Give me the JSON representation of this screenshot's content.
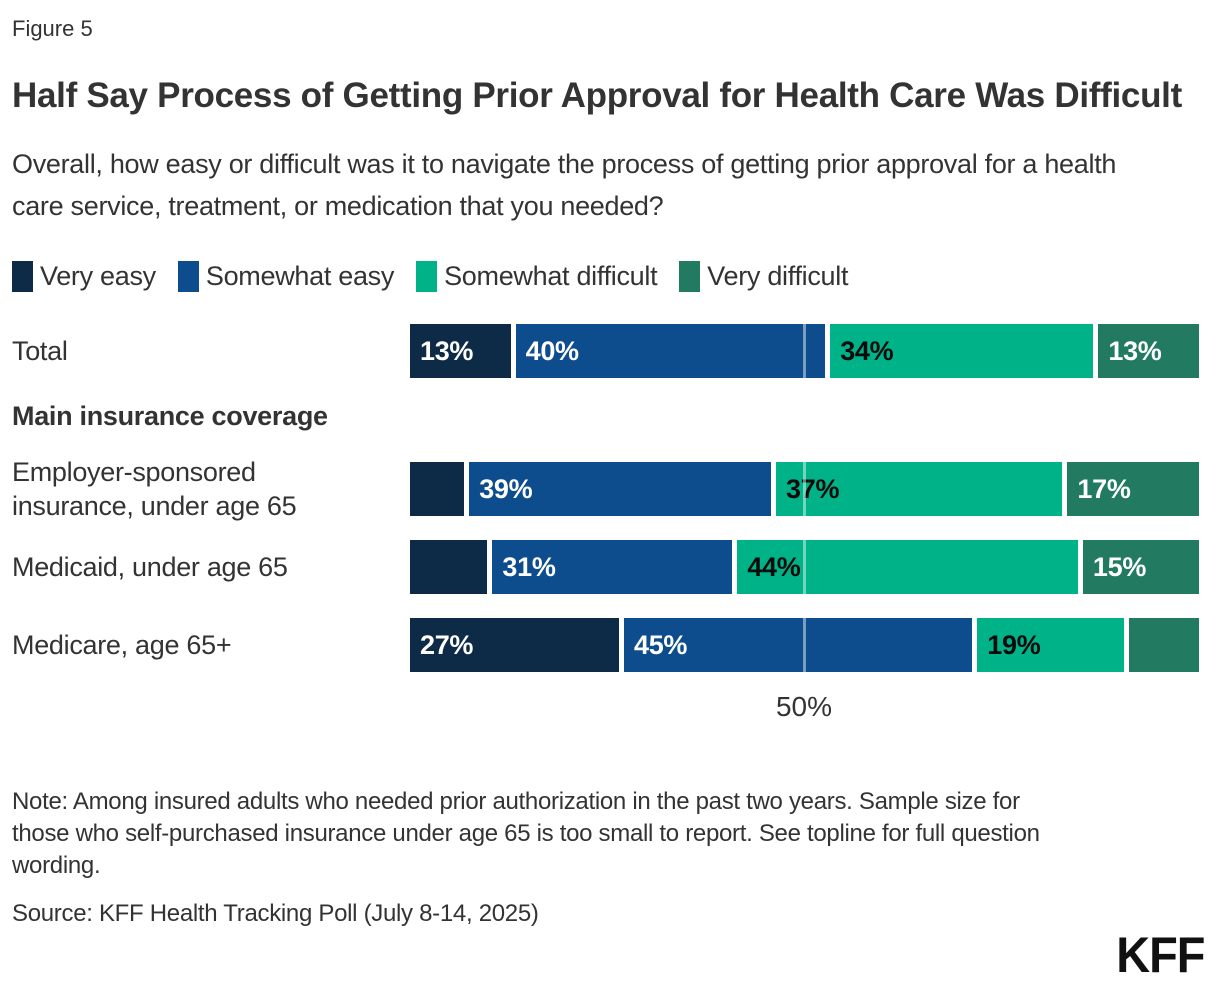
{
  "figure_label": "Figure 5",
  "title": "Half Say Process of Getting Prior Approval for Health Care Was Difficult",
  "subtitle": "Overall, how easy or difficult was it to navigate the process of getting prior approval for a health care service, treatment, or medication that you needed?",
  "chart_data": {
    "type": "bar",
    "stacked": true,
    "orientation": "horizontal",
    "unit": "percent",
    "xlim": [
      0,
      100
    ],
    "grid_on": true,
    "grid_tick": {
      "value": 50,
      "label": "50%"
    },
    "legend_position": "top",
    "legend": [
      {
        "label": "Very easy",
        "color": "#0d2a47"
      },
      {
        "label": "Somewhat easy",
        "color": "#0e4d8d"
      },
      {
        "label": "Somewhat difficult",
        "color": "#00b288"
      },
      {
        "label": "Very difficult",
        "color": "#227a60"
      }
    ],
    "rows": [
      {
        "type": "bar",
        "label": "Total",
        "values": [
          13,
          40,
          34,
          13
        ],
        "labels": [
          "13%",
          "40%",
          "34%",
          "13%"
        ]
      },
      {
        "type": "header",
        "label": "Main insurance coverage"
      },
      {
        "type": "bar",
        "label": "Employer-sponsored insurance, under age 65",
        "values": [
          7,
          39,
          37,
          17
        ],
        "labels": [
          "",
          "39%",
          "37%",
          "17%"
        ]
      },
      {
        "type": "bar",
        "label": "Medicaid, under age 65",
        "values": [
          10,
          31,
          44,
          15
        ],
        "labels": [
          "",
          "31%",
          "44%",
          "15%"
        ]
      },
      {
        "type": "bar",
        "label": "Medicare, age 65+",
        "values": [
          27,
          45,
          19,
          9
        ],
        "labels": [
          "27%",
          "45%",
          "19%",
          ""
        ]
      }
    ]
  },
  "note": "Note: Among insured adults who needed prior authorization in the past two years. Sample size for those who self-purchased insurance under age 65 is too small to report. See topline for full question wording.",
  "source": "Source: KFF Health Tracking Poll (July 8-14, 2025)",
  "logo_text": "KFF"
}
